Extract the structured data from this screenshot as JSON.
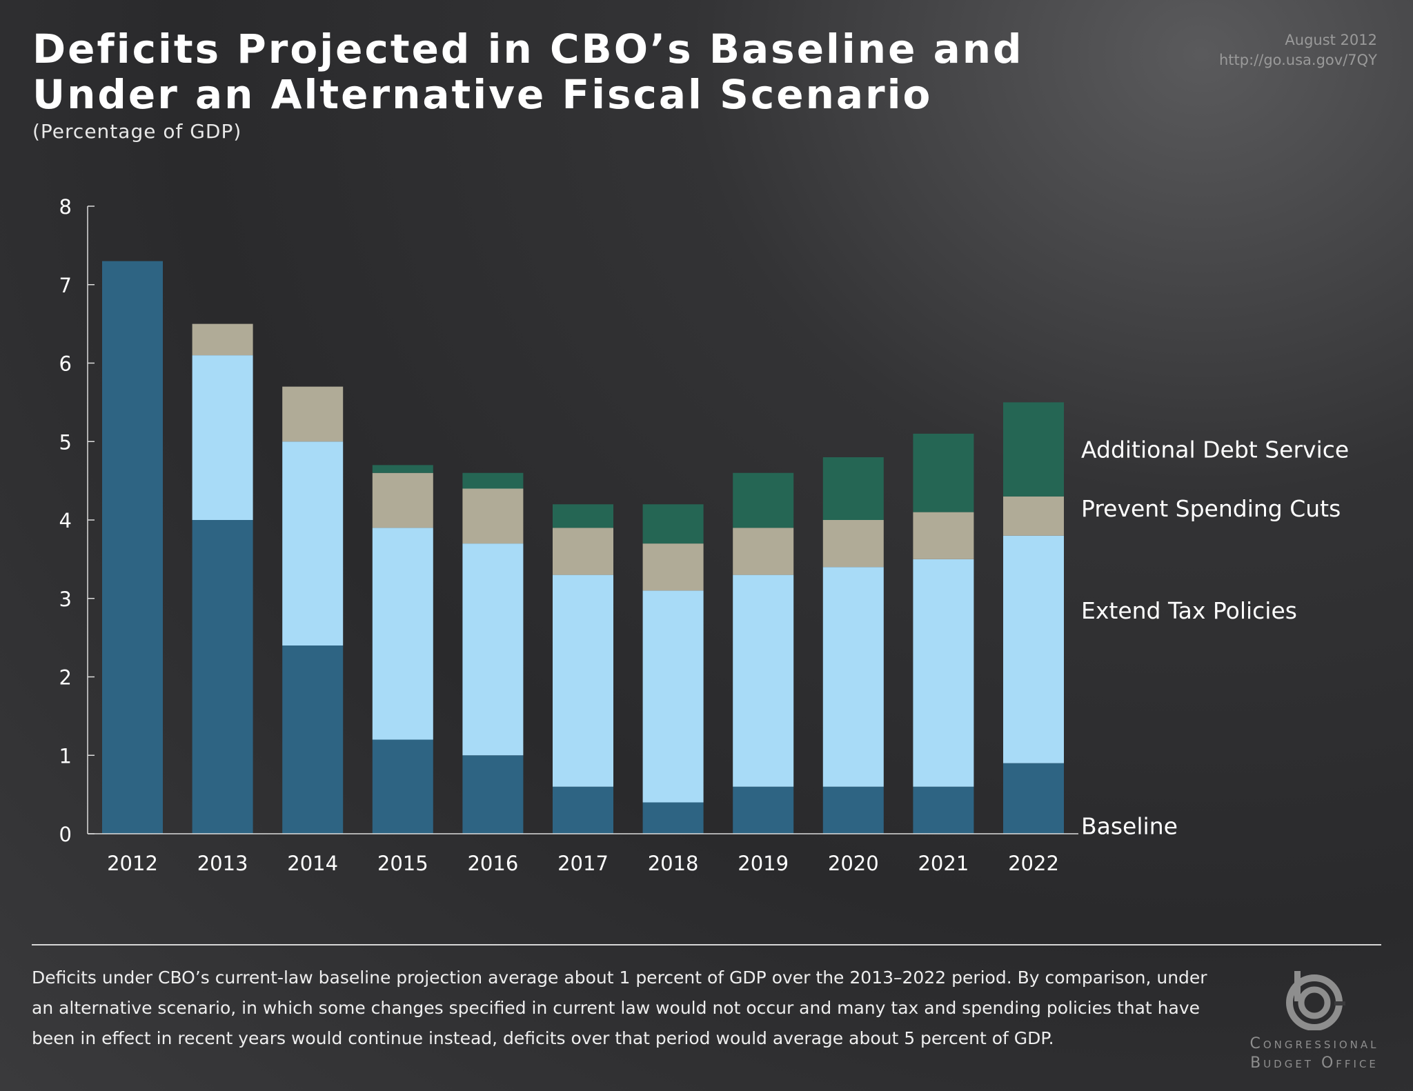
{
  "header": {
    "title_line1": "Deficits Projected in CBO’s Baseline and",
    "title_line2": "Under an Alternative Fiscal Scenario",
    "subtitle": "(Percentage of GDP)",
    "date": "August 2012",
    "url": "http://go.usa.gov/7QY"
  },
  "chart_data": {
    "type": "bar",
    "stacked": true,
    "title": "Deficits Projected in CBO’s Baseline and Under an Alternative Fiscal Scenario",
    "ylabel": "",
    "xlabel": "",
    "ylim": [
      0,
      8
    ],
    "yticks": [
      "0",
      "1",
      "2",
      "3",
      "4",
      "5",
      "6",
      "7",
      "8"
    ],
    "categories": [
      "2012",
      "2013",
      "2014",
      "2015",
      "2016",
      "2017",
      "2018",
      "2019",
      "2020",
      "2021",
      "2022"
    ],
    "legend_placement": "right (labels beside last bar)",
    "grid": false,
    "series": [
      {
        "name": "Baseline",
        "color": "#2e6483",
        "values": [
          7.3,
          4.0,
          2.4,
          1.2,
          1.0,
          0.6,
          0.4,
          0.6,
          0.6,
          0.6,
          0.9
        ]
      },
      {
        "name": "Extend Tax Policies",
        "color": "#a8dbf7",
        "values": [
          0,
          2.1,
          2.6,
          2.7,
          2.7,
          2.7,
          2.7,
          2.7,
          2.8,
          2.9,
          2.9
        ]
      },
      {
        "name": "Prevent Spending Cuts",
        "color": "#b0ab97",
        "values": [
          0,
          0.4,
          0.7,
          0.7,
          0.7,
          0.6,
          0.6,
          0.6,
          0.6,
          0.6,
          0.5
        ]
      },
      {
        "name": "Additional Debt Service",
        "color": "#256654",
        "values": [
          0,
          0,
          0,
          0.1,
          0.2,
          0.3,
          0.5,
          0.7,
          0.8,
          1.0,
          1.2
        ]
      }
    ]
  },
  "footnote": "Deficits under CBO’s current-law baseline projection average about 1 percent of GDP over the 2013–2022 period. By comparison, under an alternative scenario, in which some changes specified in current law would not occur and many tax and spending policies that have been in effect in recent years would continue instead, deficits over that period would average about 5 percent of GDP.",
  "logo": {
    "line1": "Congressional",
    "line2": "Budget Office",
    "icon": "cbo-logo-icon"
  }
}
